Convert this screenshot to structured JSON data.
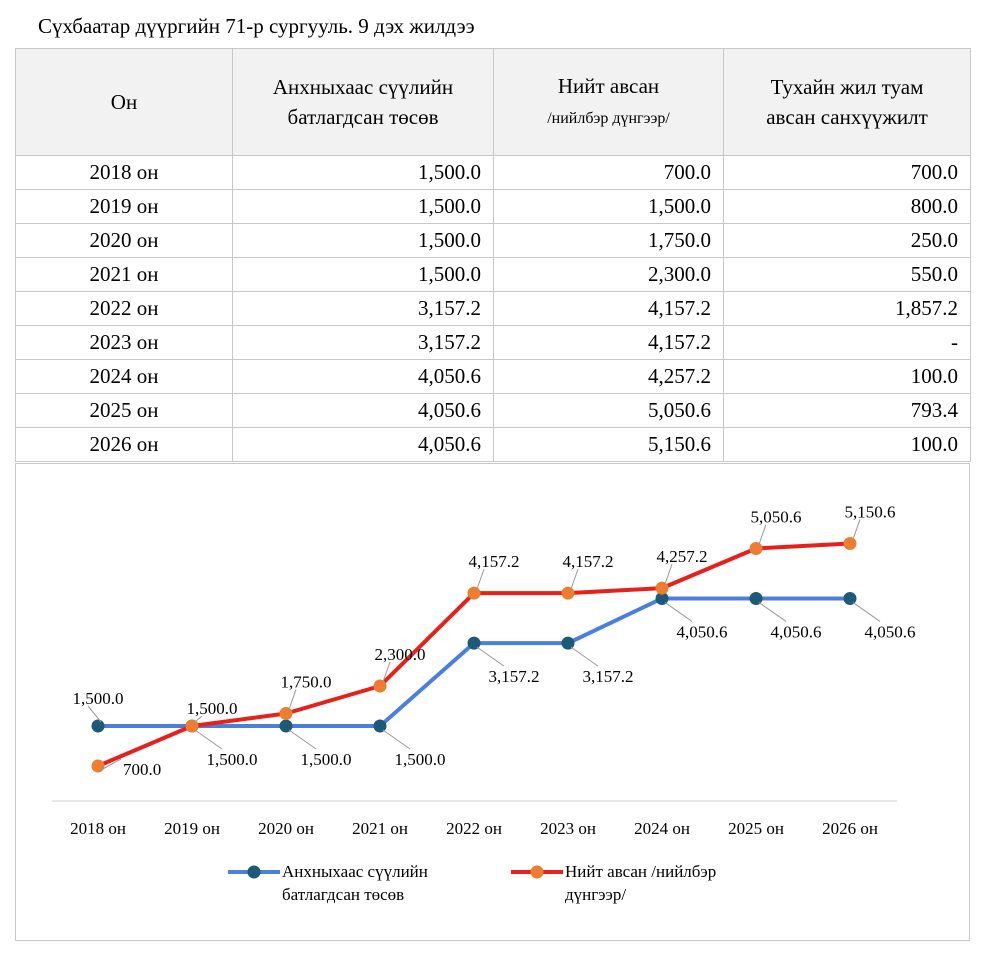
{
  "title": "Сүхбаатар дүүргийн 71-р сургууль. 9 дэх жилдээ",
  "table": {
    "header": [
      [
        "Он"
      ],
      [
        "Анхныхаас сүүлийн",
        "батлагдсан төсөв"
      ],
      [
        "Нийт авсан",
        "/нийлбэр дүнгээр/"
      ],
      [
        "Тухайн жил туам",
        "авсан санхүүжилт"
      ]
    ],
    "rows": [
      [
        "2018 он",
        "1,500.0",
        "700.0",
        "700.0"
      ],
      [
        "2019 он",
        "1,500.0",
        "1,500.0",
        "800.0"
      ],
      [
        "2020 он",
        "1,500.0",
        "1,750.0",
        "250.0"
      ],
      [
        "2021 он",
        "1,500.0",
        "2,300.0",
        "550.0"
      ],
      [
        "2022 он",
        "3,157.2",
        "4,157.2",
        "1,857.2"
      ],
      [
        "2023 он",
        "3,157.2",
        "4,157.2",
        "-"
      ],
      [
        "2024 он",
        "4,050.6",
        "4,257.2",
        "100.0"
      ],
      [
        "2025 он",
        "4,050.6",
        "5,050.6",
        "793.4"
      ],
      [
        "2026 он",
        "4,050.6",
        "5,150.6",
        "100.0"
      ]
    ]
  },
  "chart_data": {
    "type": "line",
    "categories": [
      "2018 он",
      "2019 он",
      "2020 он",
      "2021 он",
      "2022 он",
      "2023 он",
      "2024 он",
      "2025 он",
      "2026 он"
    ],
    "ylim": [
      0,
      6000
    ],
    "series": [
      {
        "name": "Анхныхаас сүүлийн батлагдсан төсөв",
        "color": "#4a7fe0",
        "marker_color": "#1c5a78",
        "values": [
          1500,
          1500,
          1500,
          1500,
          3157.2,
          3157.2,
          4050.6,
          4050.6,
          4050.6
        ],
        "value_labels": [
          "1,500.0",
          "1,500.0",
          "1,500.0",
          "1,500.0",
          "3,157.2",
          "3,157.2",
          "4,050.6",
          "4,050.6",
          "4,050.6"
        ]
      },
      {
        "name": "Нийт авсан /нийлбэр дүнгээр/",
        "color": "#e8201a",
        "marker_color": "#ed7d31",
        "values": [
          700,
          1500,
          1750,
          2300,
          4157.2,
          4157.2,
          4257.2,
          5050.6,
          5150.6
        ],
        "value_labels": [
          "700.0",
          "1,500.0",
          "1,750.0",
          "2,300.0",
          "4,157.2",
          "4,157.2",
          "4,257.2",
          "5,050.6",
          "5,150.6"
        ]
      }
    ]
  }
}
